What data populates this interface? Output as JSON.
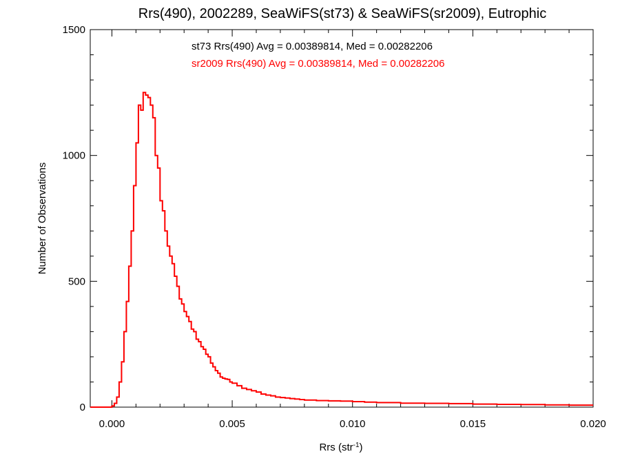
{
  "chart_data": {
    "type": "line",
    "title": "Rrs(490), 2002289, SeaWiFS(st73) & SeaWiFS(sr2009), Eutrophic",
    "xlabel": "Rrs (str",
    "xlabel_sup": "-1",
    "xlabel_close": ")",
    "ylabel": "Number of Observations",
    "xlim": [
      -0.0009,
      0.02
    ],
    "ylim": [
      0,
      1500
    ],
    "xticks": [
      0.0,
      0.005,
      0.01,
      0.015,
      0.02
    ],
    "xtick_labels": [
      "0.000",
      "0.005",
      "0.010",
      "0.015",
      "0.020"
    ],
    "yticks": [
      0,
      500,
      1000,
      1500
    ],
    "ytick_labels": [
      "0",
      "500",
      "1000",
      "1500"
    ],
    "grid": false,
    "annotations": [
      "st73 Rrs(490) Avg = 0.00389814, Med = 0.00282206",
      "sr2009 Rrs(490) Avg = 0.00389814, Med = 0.00282206"
    ],
    "series_colors": [
      "#000000",
      "#ff0000"
    ],
    "bin_width": 0.0001,
    "x": [
      0.0,
      0.0001,
      0.0002,
      0.0003,
      0.0004,
      0.0005,
      0.0006,
      0.0007,
      0.0008,
      0.0009,
      0.001,
      0.0011,
      0.0012,
      0.0013,
      0.0014,
      0.0015,
      0.0016,
      0.0017,
      0.0018,
      0.0019,
      0.002,
      0.0021,
      0.0022,
      0.0023,
      0.0024,
      0.0025,
      0.0026,
      0.0027,
      0.0028,
      0.0029,
      0.003,
      0.0031,
      0.0032,
      0.0033,
      0.0034,
      0.0035,
      0.0036,
      0.0037,
      0.0038,
      0.0039,
      0.004,
      0.0041,
      0.0042,
      0.0043,
      0.0044,
      0.0045,
      0.0046,
      0.0047,
      0.0048,
      0.0049,
      0.005,
      0.0052,
      0.0054,
      0.0056,
      0.0058,
      0.006,
      0.0062,
      0.0064,
      0.0066,
      0.0068,
      0.007,
      0.0072,
      0.0074,
      0.0076,
      0.0078,
      0.008,
      0.0085,
      0.009,
      0.0095,
      0.01,
      0.0105,
      0.011,
      0.012,
      0.013,
      0.014,
      0.015,
      0.016,
      0.017,
      0.018,
      0.019,
      0.02
    ],
    "series": [
      {
        "values": [
          5,
          15,
          40,
          100,
          180,
          300,
          420,
          560,
          700,
          880,
          1050,
          1200,
          1180,
          1250,
          1240,
          1230,
          1200,
          1150,
          1000,
          950,
          820,
          780,
          700,
          640,
          600,
          570,
          520,
          480,
          430,
          410,
          380,
          360,
          340,
          310,
          300,
          270,
          260,
          240,
          230,
          210,
          200,
          175,
          160,
          145,
          135,
          120,
          115,
          112,
          110,
          100,
          95,
          85,
          75,
          70,
          65,
          60,
          52,
          48,
          45,
          40,
          38,
          36,
          34,
          32,
          30,
          28,
          26,
          25,
          24,
          22,
          20,
          18,
          16,
          15,
          14,
          12,
          11,
          10,
          9,
          8,
          8
        ]
      },
      {
        "values": [
          5,
          15,
          40,
          100,
          180,
          300,
          420,
          560,
          700,
          880,
          1050,
          1200,
          1180,
          1250,
          1240,
          1230,
          1200,
          1150,
          1000,
          950,
          820,
          780,
          700,
          640,
          600,
          570,
          520,
          480,
          430,
          410,
          380,
          360,
          340,
          310,
          300,
          270,
          260,
          240,
          230,
          210,
          200,
          175,
          160,
          145,
          135,
          120,
          115,
          112,
          110,
          100,
          95,
          85,
          75,
          70,
          65,
          60,
          52,
          48,
          45,
          40,
          38,
          36,
          34,
          32,
          30,
          28,
          26,
          25,
          24,
          22,
          20,
          18,
          16,
          15,
          14,
          12,
          11,
          10,
          9,
          8,
          8
        ]
      }
    ]
  }
}
